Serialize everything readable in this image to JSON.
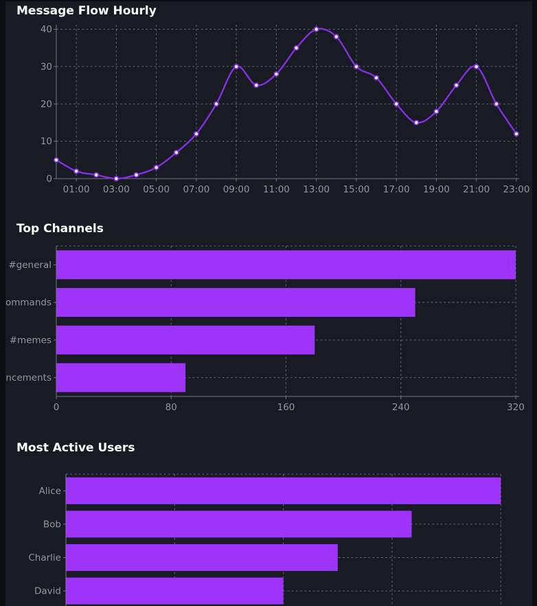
{
  "page": {
    "bg_edge": "#0b0d12",
    "bg_panel": "#181b24"
  },
  "colors": {
    "line": "#8430e0",
    "marker_face": "#ffffff",
    "bar": "#9e34fb",
    "grid": "#a9adb4",
    "spine": "#7d8189",
    "tick_text": "#94969c",
    "title_text": "#ffffff"
  },
  "chart_data": [
    {
      "type": "line",
      "title": "Message Flow Hourly",
      "x_unit": "hour of day",
      "x_start": "00:00",
      "x_interval_hours": 1,
      "x_tick_labels": [
        "01:00",
        "03:00",
        "05:00",
        "07:00",
        "09:00",
        "11:00",
        "13:00",
        "15:00",
        "17:00",
        "19:00",
        "21:00",
        "23:00"
      ],
      "values": [
        5,
        2,
        1,
        0,
        1,
        3,
        7,
        12,
        20,
        30,
        25,
        28,
        35,
        40,
        38,
        30,
        27,
        20,
        15,
        18,
        25,
        30,
        20,
        12
      ],
      "y_ticks": [
        0,
        10,
        20,
        30,
        40
      ],
      "ylim": [
        0,
        41.2
      ],
      "grid": true,
      "legend": "none"
    },
    {
      "type": "bar",
      "orientation": "horizontal",
      "title": "Top Channels",
      "categories": [
        "#general",
        "#commands",
        "#memes",
        "#announcements"
      ],
      "values": [
        320,
        250,
        180,
        90
      ],
      "x_ticks": [
        0,
        80,
        160,
        240,
        320
      ],
      "xlim": [
        0,
        320
      ],
      "grid": true
    },
    {
      "type": "bar",
      "orientation": "horizontal",
      "title": "Most Active Users",
      "categories": [
        "Alice",
        "Bob",
        "Charlie",
        "David"
      ],
      "values": [
        200,
        159,
        125,
        100
      ],
      "x_grid_values": [
        50,
        100,
        150,
        200
      ],
      "xlim": [
        0,
        200
      ],
      "x_axis_labels_visible": false,
      "grid": true
    }
  ]
}
